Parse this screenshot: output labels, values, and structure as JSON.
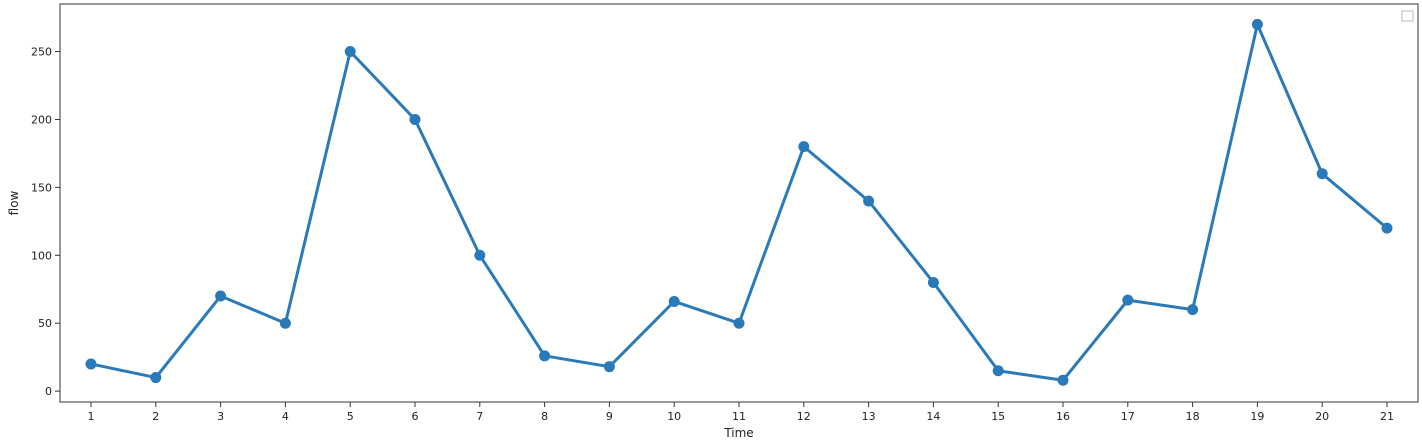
{
  "chart_data": {
    "type": "line",
    "xlabel": "Time",
    "ylabel": "flow",
    "categories": [
      "1",
      "2",
      "3",
      "4",
      "5",
      "6",
      "7",
      "8",
      "9",
      "10",
      "11",
      "12",
      "13",
      "14",
      "15",
      "16",
      "17",
      "18",
      "19",
      "20",
      "21"
    ],
    "series": [
      {
        "color": "#2a7ab9",
        "values": [
          20,
          10,
          70,
          50,
          250,
          200,
          100,
          26,
          18,
          66,
          50,
          180,
          140,
          80,
          15,
          8,
          67,
          60,
          270,
          160,
          120
        ]
      }
    ],
    "yticks": [
      0,
      50,
      100,
      150,
      200,
      250
    ],
    "ylim": [
      -8,
      285
    ],
    "grid": false,
    "legend": "top-right (empty)",
    "marker": "circle"
  }
}
